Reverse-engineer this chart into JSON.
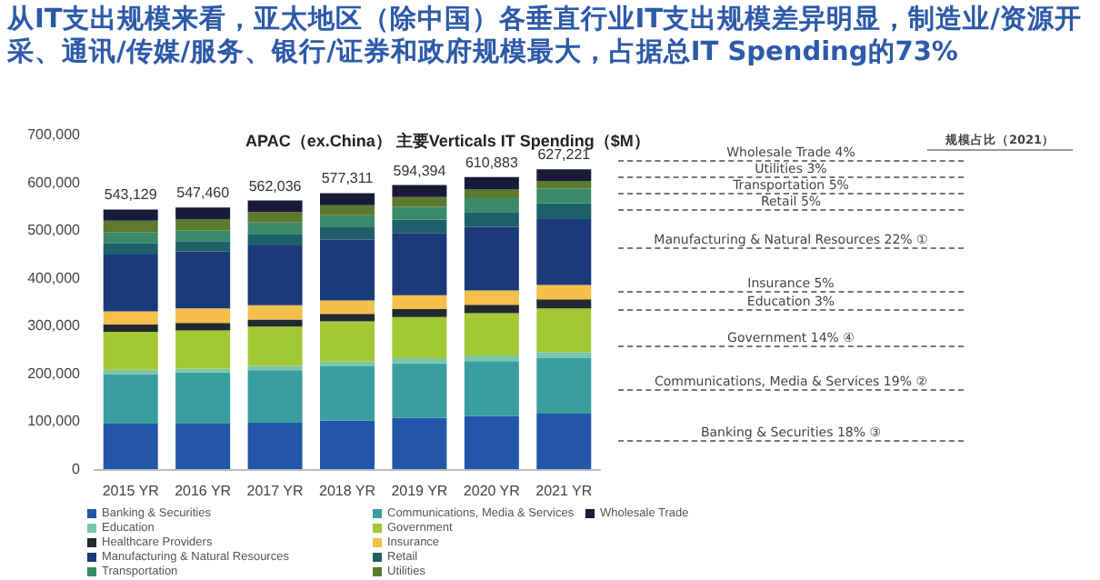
{
  "chart_data": {
    "type": "bar",
    "stacked": true,
    "title": "从IT支出规模来看，亚太地区（除中国）各垂直行业IT支出规模差异明显，制造业/资源开采、通讯/传媒/服务、银行/证券和政府规模最大，占据总IT Spending的73%",
    "subtitle": "APAC（ex.China） 主要Verticals IT Spending（$M）",
    "categories": [
      "2015 YR",
      "2016 YR",
      "2017 YR",
      "2018 YR",
      "2019 YR",
      "2020 YR",
      "2021 YR"
    ],
    "series": [
      {
        "name": "Banking & Securities",
        "color": "#2356a8",
        "values": [
          95000,
          95000,
          97000,
          102000,
          107000,
          111000,
          116000
        ]
      },
      {
        "name": "Communications, Media & Services",
        "color": "#3a9ea0",
        "values": [
          104000,
          107000,
          110000,
          113000,
          114000,
          115000,
          116000
        ]
      },
      {
        "name": "Education",
        "color": "#7cc5a8",
        "values": [
          9000,
          8000,
          9000,
          10000,
          11000,
          12000,
          13000
        ]
      },
      {
        "name": "Government",
        "color": "#a2c834",
        "values": [
          79000,
          80000,
          82000,
          84000,
          86000,
          88000,
          91000
        ]
      },
      {
        "name": "Healthcare Providers",
        "color": "#222a30",
        "values": [
          16000,
          16000,
          15000,
          16000,
          17000,
          18000,
          19000
        ]
      },
      {
        "name": "Insurance",
        "color": "#f5c04a",
        "values": [
          27000,
          30000,
          30000,
          28000,
          29000,
          30000,
          30000
        ]
      },
      {
        "name": "Manufacturing & Natural Resources",
        "color": "#1b3a7a",
        "values": [
          119000,
          119000,
          125000,
          127000,
          130000,
          133000,
          138000
        ]
      },
      {
        "name": "Retail",
        "color": "#1e5f6a",
        "values": [
          24000,
          22000,
          24000,
          26000,
          28000,
          31000,
          33000
        ]
      },
      {
        "name": "Transportation",
        "color": "#3a8a6a",
        "values": [
          22000,
          22000,
          24000,
          25000,
          27000,
          29000,
          31000
        ]
      },
      {
        "name": "Utilities",
        "color": "#5b7a2e",
        "values": [
          25000,
          24000,
          22000,
          21000,
          20000,
          18000,
          16000
        ]
      },
      {
        "name": "Wholesale Trade",
        "color": "#181a3a",
        "values": [
          23129,
          24460,
          24036,
          25311,
          25394,
          25883,
          24221
        ]
      }
    ],
    "totals": [
      "543,129",
      "547,460",
      "562,036",
      "577,311",
      "594,394",
      "610,883",
      "627,221"
    ],
    "ylim": [
      0,
      700000
    ],
    "yticks": [
      0,
      {
        "value": 100000,
        "label": "100,000"
      },
      {
        "value": 200000,
        "label": "200,000"
      },
      {
        "value": 300000,
        "label": "300,000"
      },
      {
        "value": 400000,
        "label": "400,000"
      },
      {
        "value": 500000,
        "label": "500,000"
      },
      {
        "value": 600000,
        "label": "600,000"
      },
      {
        "value": 700000,
        "label": "700,000"
      }
    ],
    "grid": false,
    "legend": "bottom",
    "annotations": [
      "规模占比（2021）",
      "Wholesale Trade 4%",
      "Utilities 3%",
      "Transportation 5%",
      "Retail 5%",
      "Manufacturing & Natural Resources 22% ①",
      "Insurance 5%",
      "Education 3%",
      "Government 14% ④",
      "Communications, Media & Services 19% ②",
      "Banking & Securities 18% ③"
    ]
  }
}
